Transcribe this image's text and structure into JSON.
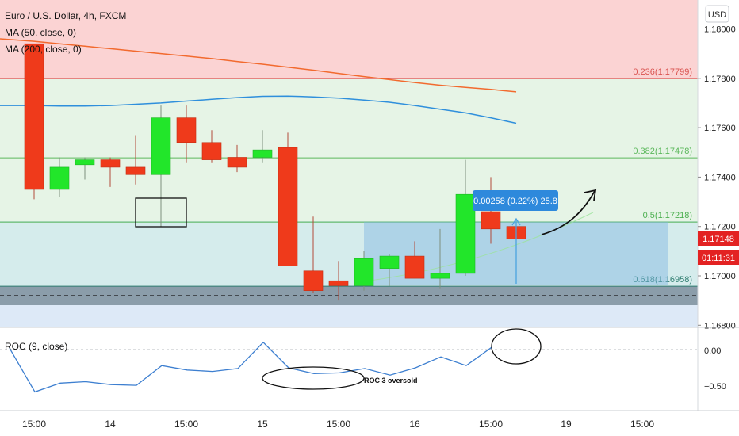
{
  "header": {
    "symbol": "Euro / U.S. Dollar, 4h, FXCM",
    "ma50_label": "MA (50, close, 0)",
    "ma200_label": "MA (200, close, 0)",
    "currency": "USD"
  },
  "price_axis": {
    "ticks": [
      "1.18000",
      "1.17800",
      "1.17600",
      "1.17400",
      "1.17200",
      "1.17000",
      "1.16800"
    ],
    "current_price": "1.17148",
    "countdown": "01:11:31"
  },
  "fib_levels": [
    {
      "label": "0.236(1.17799)",
      "value": 1.17799,
      "color": "#d9534f"
    },
    {
      "label": "0.382(1.17478)",
      "value": 1.17478,
      "color": "#5cb85c"
    },
    {
      "label": "0.5(1.17218)",
      "value": 1.17218,
      "color": "#4caf50"
    },
    {
      "label": "0.618(1.16958)",
      "value": 1.16958,
      "color": "#2e7d6f"
    }
  ],
  "measure_label": "0.00258 (0.22%) 25.8",
  "roc": {
    "label": "ROC (9, close)",
    "ticks": [
      "0.00",
      "−0.50"
    ],
    "annotation": "ROC 3 oversold"
  },
  "time_axis": [
    "15:00",
    "14",
    "15:00",
    "15",
    "15:00",
    "16",
    "15:00",
    "19",
    "15:00"
  ],
  "colors": {
    "up": "#22e62a",
    "down": "#ef3a1b",
    "ma200": "#f26a2e",
    "ma50": "#2f8fdc",
    "current_price": "#e32222"
  },
  "chart_data": {
    "type": "candlestick",
    "title": "Euro / U.S. Dollar, 4h, FXCM",
    "ylim": [
      1.1677,
      1.1818
    ],
    "candles": [
      {
        "o": 1.1794,
        "h": 1.1794,
        "l": 1.1731,
        "c": 1.1735
      },
      {
        "o": 1.1735,
        "h": 1.1748,
        "l": 1.1732,
        "c": 1.1744
      },
      {
        "o": 1.1745,
        "h": 1.1748,
        "l": 1.1739,
        "c": 1.1747
      },
      {
        "o": 1.1747,
        "h": 1.1748,
        "l": 1.1736,
        "c": 1.1744
      },
      {
        "o": 1.1744,
        "h": 1.1757,
        "l": 1.1737,
        "c": 1.1741
      },
      {
        "o": 1.1741,
        "h": 1.1769,
        "l": 1.172,
        "c": 1.1764
      },
      {
        "o": 1.1764,
        "h": 1.1769,
        "l": 1.1746,
        "c": 1.1754
      },
      {
        "o": 1.1754,
        "h": 1.1759,
        "l": 1.1746,
        "c": 1.1747
      },
      {
        "o": 1.1748,
        "h": 1.1753,
        "l": 1.1742,
        "c": 1.1744
      },
      {
        "o": 1.1748,
        "h": 1.1759,
        "l": 1.1746,
        "c": 1.1751
      },
      {
        "o": 1.1752,
        "h": 1.1758,
        "l": 1.1704,
        "c": 1.1704
      },
      {
        "o": 1.1702,
        "h": 1.1724,
        "l": 1.1693,
        "c": 1.1694
      },
      {
        "o": 1.1698,
        "h": 1.1706,
        "l": 1.169,
        "c": 1.1696
      },
      {
        "o": 1.1696,
        "h": 1.171,
        "l": 1.1694,
        "c": 1.1707
      },
      {
        "o": 1.1703,
        "h": 1.1709,
        "l": 1.1696,
        "c": 1.1708
      },
      {
        "o": 1.1708,
        "h": 1.1714,
        "l": 1.1699,
        "c": 1.1699
      },
      {
        "o": 1.1699,
        "h": 1.1719,
        "l": 1.1695,
        "c": 1.1701
      },
      {
        "o": 1.1701,
        "h": 1.1747,
        "l": 1.17,
        "c": 1.1733
      },
      {
        "o": 1.1726,
        "h": 1.174,
        "l": 1.1713,
        "c": 1.1719
      },
      {
        "o": 1.172,
        "h": 1.172,
        "l": 1.1714,
        "c": 1.1715
      }
    ],
    "ma50": [
      1.1769,
      1.17688,
      1.17688,
      1.1769,
      1.17695,
      1.177,
      1.17708,
      1.17715,
      1.17722,
      1.17727,
      1.17728,
      1.17725,
      1.1772,
      1.17712,
      1.17703,
      1.1769,
      1.17675,
      1.1766,
      1.1764,
      1.17618
    ],
    "ma200": [
      1.1795,
      1.1794,
      1.1793,
      1.1792,
      1.1791,
      1.179,
      1.1789,
      1.1788,
      1.17868,
      1.17857,
      1.17845,
      1.17833,
      1.1782,
      1.17807,
      1.17795,
      1.17783,
      1.17772,
      1.17763,
      1.17755,
      1.17745
    ],
    "roc_values": [
      0.02,
      -0.58,
      -0.46,
      -0.44,
      -0.48,
      -0.49,
      -0.22,
      -0.28,
      -0.3,
      -0.26,
      0.1,
      -0.25,
      -0.33,
      -0.32,
      -0.26,
      -0.35,
      -0.25,
      -0.1,
      -0.22,
      0.03
    ],
    "roc_ylim": [
      -0.75,
      0.25
    ]
  }
}
